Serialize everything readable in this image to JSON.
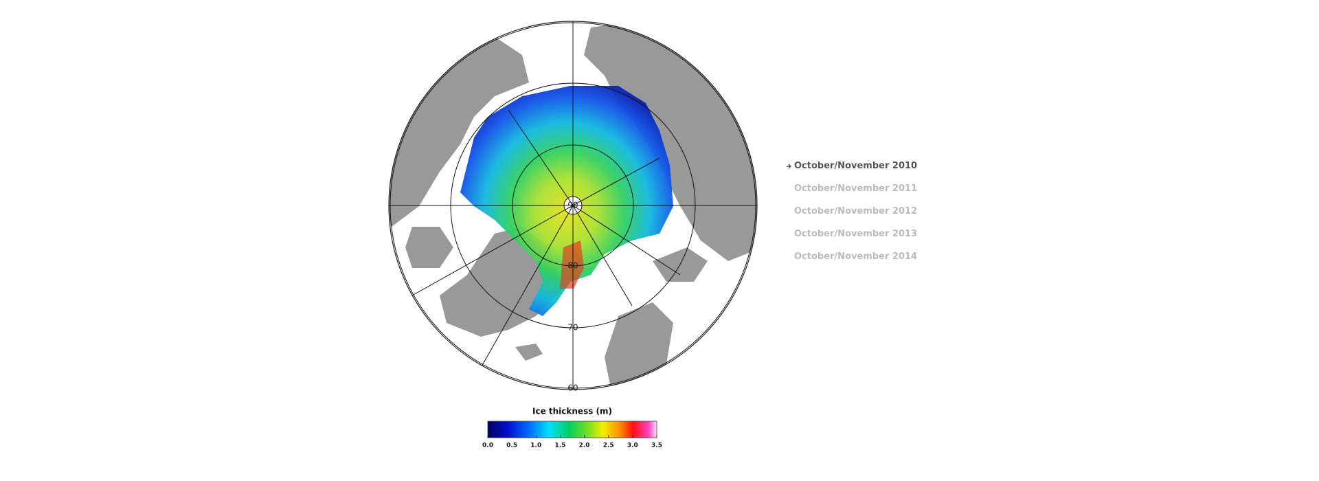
{
  "map": {
    "latitude_labels": [
      "90",
      "80",
      "70",
      "60"
    ]
  },
  "colorbar": {
    "title": "Ice thickness (m)",
    "range": [
      0,
      3.5
    ],
    "ticks": [
      {
        "value": 0,
        "label": "0.0"
      },
      {
        "value": 0.5,
        "label": "0.5"
      },
      {
        "value": 1,
        "label": "1.0"
      },
      {
        "value": 1.5,
        "label": "1.5"
      },
      {
        "value": 2,
        "label": "2.0"
      },
      {
        "value": 2.5,
        "label": "2.5"
      },
      {
        "value": 3,
        "label": "3.0"
      },
      {
        "value": 3.5,
        "label": "3.5"
      }
    ]
  },
  "selector": {
    "items": [
      "October/November 2010",
      "October/November 2011",
      "October/November 2012",
      "October/November 2013",
      "October/November 2014"
    ],
    "selected": 0
  }
}
